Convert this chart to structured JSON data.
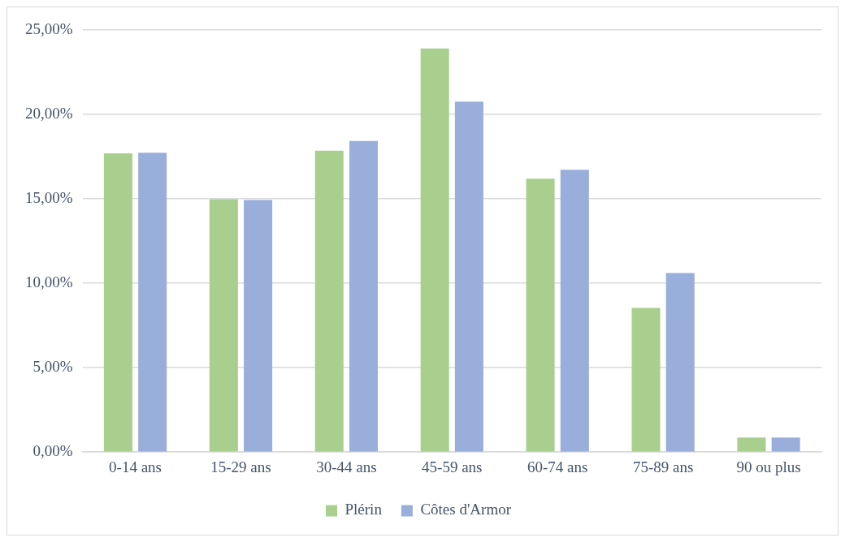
{
  "chart_data": {
    "type": "bar",
    "categories": [
      "0-14 ans",
      "15-29 ans",
      "30-44 ans",
      "45-59 ans",
      "60-74 ans",
      "75-89 ans",
      "90 ou plus"
    ],
    "series": [
      {
        "name": "Plérin",
        "color": "#a9cf8f",
        "values": [
          17.7,
          14.98,
          17.85,
          23.91,
          16.19,
          8.54,
          0.86
        ]
      },
      {
        "name": "Côtes d'Armor",
        "color": "#9aaedb",
        "values": [
          17.73,
          14.93,
          18.43,
          20.76,
          16.72,
          10.61,
          0.86
        ]
      }
    ],
    "ylim": [
      0,
      25
    ],
    "yticks": [
      {
        "value": 0,
        "label": "0,00%"
      },
      {
        "value": 5,
        "label": "5,00%"
      },
      {
        "value": 10,
        "label": "10,00%"
      },
      {
        "value": 15,
        "label": "15,00%"
      },
      {
        "value": 20,
        "label": "20,00%"
      },
      {
        "value": 25,
        "label": "25,00%"
      }
    ],
    "grid": "y",
    "legend": "bottom"
  }
}
